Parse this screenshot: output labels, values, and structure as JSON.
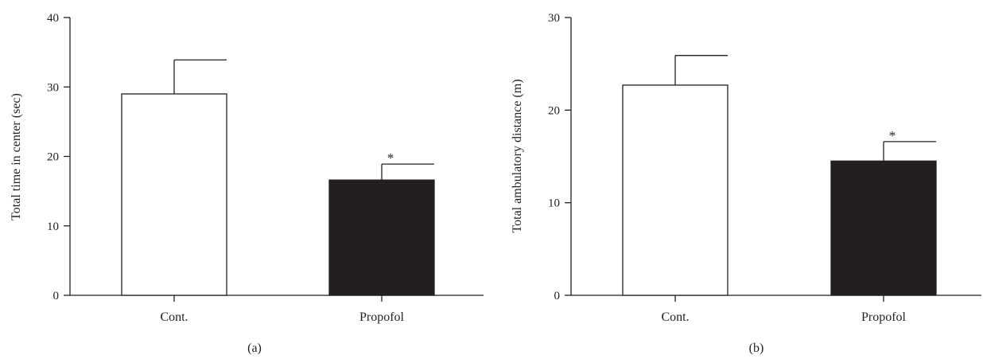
{
  "colors": {
    "axis": "#231f20",
    "bar_fill_control": "#ffffff",
    "bar_fill_propofol": "#231f20"
  },
  "chart_data": [
    {
      "type": "bar",
      "panel_label": "(a)",
      "ylabel": "Total time in center (sec)",
      "xlabel": "",
      "ylim": [
        0,
        40
      ],
      "yticks": [
        0,
        10,
        20,
        30,
        40
      ],
      "categories": [
        "Cont.",
        "Propofol"
      ],
      "values": [
        29,
        16.6
      ],
      "errors": [
        4.9,
        2.3
      ],
      "bar_colors": [
        "#ffffff",
        "#231f20"
      ],
      "significance": [
        "",
        "*"
      ],
      "grid": false
    },
    {
      "type": "bar",
      "panel_label": "(b)",
      "ylabel": "Total ambulatory distance (m)",
      "xlabel": "",
      "ylim": [
        0,
        30
      ],
      "yticks": [
        0,
        10,
        20,
        30
      ],
      "categories": [
        "Cont.",
        "Propofol"
      ],
      "values": [
        22.7,
        14.5
      ],
      "errors": [
        3.2,
        2.1
      ],
      "bar_colors": [
        "#ffffff",
        "#231f20"
      ],
      "significance": [
        "",
        "*"
      ],
      "grid": false
    }
  ]
}
